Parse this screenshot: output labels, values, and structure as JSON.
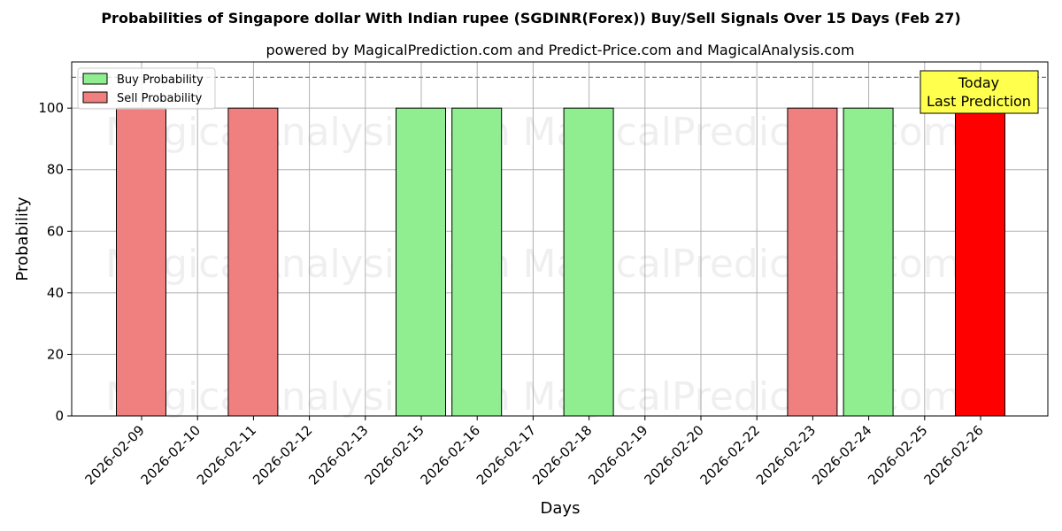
{
  "chart_data": {
    "type": "bar",
    "title": "Probabilities of Singapore dollar With Indian rupee (SGDINR(Forex)) Buy/Sell Signals Over 15 Days (Feb 27)",
    "subtitle": "powered by MagicalPrediction.com and Predict-Price.com and MagicalAnalysis.com",
    "xlabel": "Days",
    "ylabel": "Probability",
    "ylim": [
      0,
      115
    ],
    "yticks": [
      0,
      20,
      40,
      60,
      80,
      100
    ],
    "grid": true,
    "legend_position": "top-left",
    "categories": [
      "2026-02-09",
      "2026-02-10",
      "2026-02-11",
      "2026-02-12",
      "2026-02-13",
      "2026-02-15",
      "2026-02-16",
      "2026-02-17",
      "2026-02-18",
      "2026-02-19",
      "2026-02-20",
      "2026-02-22",
      "2026-02-23",
      "2026-02-24",
      "2026-02-25",
      "2026-02-26"
    ],
    "series": [
      {
        "name": "Buy Probability",
        "color": "#90ee90",
        "values": [
          0,
          0,
          0,
          0,
          0,
          100,
          100,
          0,
          100,
          0,
          0,
          0,
          0,
          100,
          0,
          0
        ]
      },
      {
        "name": "Sell Probability",
        "color": "#f08080",
        "values": [
          100,
          0,
          100,
          0,
          0,
          0,
          0,
          0,
          0,
          0,
          0,
          0,
          100,
          0,
          0,
          100
        ]
      }
    ],
    "highlight": {
      "category": "2026-02-26",
      "color": "#ff0000"
    },
    "reference_line": {
      "y": 110,
      "style": "dashed"
    },
    "annotation": {
      "lines": [
        "Today",
        "Last Prediction"
      ],
      "background": "#ffff4d"
    },
    "watermarks": [
      "MagicalAnalysis.com",
      "MagicalPrediction.com"
    ]
  }
}
